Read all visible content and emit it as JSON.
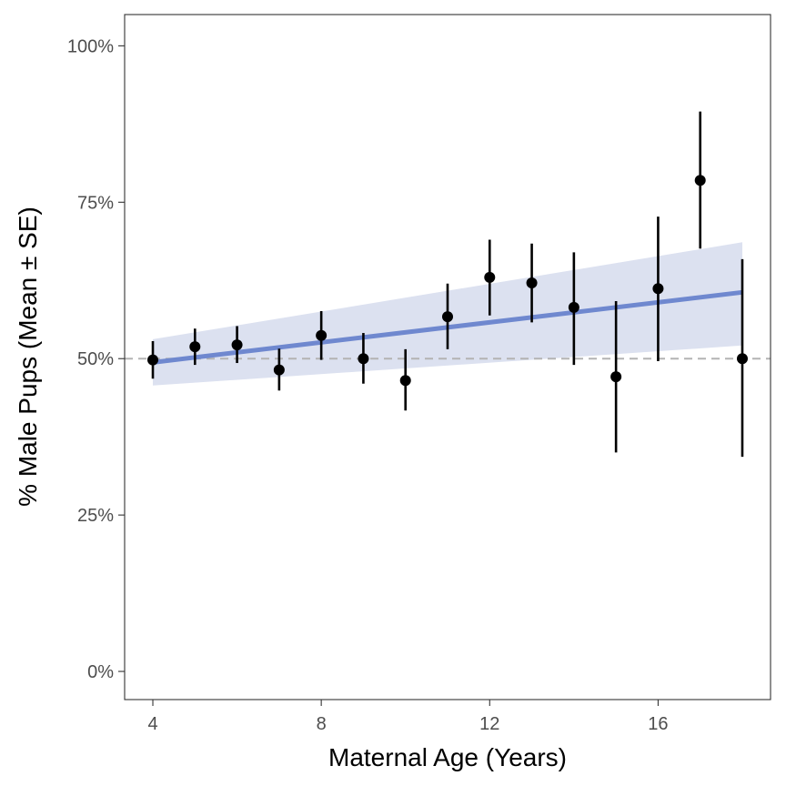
{
  "chart_data": {
    "type": "scatter",
    "xlabel": "Maternal Age (Years)",
    "ylabel": "% Male Pups (Mean ± SE)",
    "xlim": [
      3.33,
      18.67
    ],
    "ylim": [
      -0.045,
      1.05
    ],
    "x_ticks": [
      4,
      8,
      12,
      16
    ],
    "x_tick_labels": [
      "4",
      "8",
      "12",
      "16"
    ],
    "y_ticks": [
      0,
      0.25,
      0.5,
      0.75,
      1.0
    ],
    "y_tick_labels": [
      "0%",
      "25%",
      "50%",
      "75%",
      "100%"
    ],
    "reference_line": {
      "y": 0.5,
      "style": "dashed",
      "color": "#b3b3b3"
    },
    "points": [
      {
        "x": 4,
        "mean": 0.498,
        "lower": 0.468,
        "upper": 0.528
      },
      {
        "x": 5,
        "mean": 0.519,
        "lower": 0.49,
        "upper": 0.548
      },
      {
        "x": 6,
        "mean": 0.522,
        "lower": 0.493,
        "upper": 0.552
      },
      {
        "x": 7,
        "mean": 0.482,
        "lower": 0.449,
        "upper": 0.516
      },
      {
        "x": 8,
        "mean": 0.537,
        "lower": 0.498,
        "upper": 0.576
      },
      {
        "x": 9,
        "mean": 0.5,
        "lower": 0.46,
        "upper": 0.541
      },
      {
        "x": 10,
        "mean": 0.465,
        "lower": 0.417,
        "upper": 0.515
      },
      {
        "x": 11,
        "mean": 0.567,
        "lower": 0.515,
        "upper": 0.62
      },
      {
        "x": 12,
        "mean": 0.63,
        "lower": 0.569,
        "upper": 0.69
      },
      {
        "x": 13,
        "mean": 0.621,
        "lower": 0.558,
        "upper": 0.684
      },
      {
        "x": 14,
        "mean": 0.582,
        "lower": 0.49,
        "upper": 0.67
      },
      {
        "x": 15,
        "mean": 0.471,
        "lower": 0.35,
        "upper": 0.592
      },
      {
        "x": 16,
        "mean": 0.612,
        "lower": 0.496,
        "upper": 0.727
      },
      {
        "x": 17,
        "mean": 0.785,
        "lower": 0.676,
        "upper": 0.895
      },
      {
        "x": 18,
        "mean": 0.5,
        "lower": 0.343,
        "upper": 0.659
      }
    ],
    "fit": {
      "x": [
        4,
        18
      ],
      "y": [
        0.494,
        0.606
      ],
      "ci_lower": [
        0.457,
        0.521
      ],
      "ci_upper": [
        0.531,
        0.686
      ],
      "color": "#6f88cf",
      "ribbon_color": "#dce1f0"
    },
    "point_color": "#000000",
    "grid": false
  }
}
